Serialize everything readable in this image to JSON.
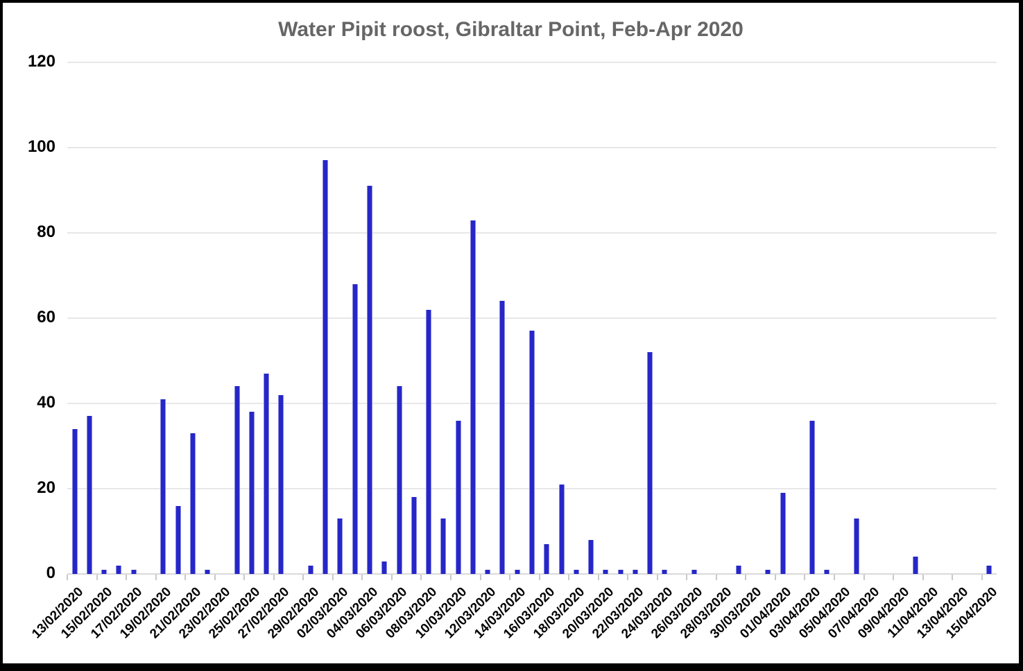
{
  "title": "Water Pipit roost, Gibraltar Point, Feb-Apr 2020",
  "colors": {
    "bar": "#2626c9",
    "bar_edge": "#8a8ae0",
    "title_text": "#666666",
    "axis_text": "#000000",
    "gridline": "#e7e7e7",
    "axis_line": "#d9d9d9",
    "frame": "#000000",
    "background": "#ffffff"
  },
  "chart_data": {
    "type": "bar",
    "title": "Water Pipit roost, Gibraltar Point, Feb-Apr 2020",
    "xlabel": "",
    "ylabel": "",
    "ylim": [
      0,
      120
    ],
    "yticks": [
      0,
      20,
      40,
      60,
      80,
      100,
      120
    ],
    "grid": true,
    "legend": false,
    "x_label_interval": 2,
    "x_labels_rotation_deg": 45,
    "categories": [
      "13/02/2020",
      "14/02/2020",
      "15/02/2020",
      "16/02/2020",
      "17/02/2020",
      "18/02/2020",
      "19/02/2020",
      "20/02/2020",
      "21/02/2020",
      "22/02/2020",
      "23/02/2020",
      "24/02/2020",
      "25/02/2020",
      "26/02/2020",
      "27/02/2020",
      "28/02/2020",
      "29/02/2020",
      "01/03/2020",
      "02/03/2020",
      "03/03/2020",
      "04/03/2020",
      "05/03/2020",
      "06/03/2020",
      "07/03/2020",
      "08/03/2020",
      "09/03/2020",
      "10/03/2020",
      "11/03/2020",
      "12/03/2020",
      "13/03/2020",
      "14/03/2020",
      "15/03/2020",
      "16/03/2020",
      "17/03/2020",
      "18/03/2020",
      "19/03/2020",
      "20/03/2020",
      "21/03/2020",
      "22/03/2020",
      "23/03/2020",
      "24/03/2020",
      "25/03/2020",
      "26/03/2020",
      "27/03/2020",
      "28/03/2020",
      "29/03/2020",
      "30/03/2020",
      "31/03/2020",
      "01/04/2020",
      "02/04/2020",
      "03/04/2020",
      "04/04/2020",
      "05/04/2020",
      "06/04/2020",
      "07/04/2020",
      "08/04/2020",
      "09/04/2020",
      "10/04/2020",
      "11/04/2020",
      "12/04/2020",
      "13/04/2020",
      "14/04/2020",
      "15/04/2020"
    ],
    "values": [
      34,
      37,
      1,
      2,
      1,
      0,
      41,
      16,
      33,
      1,
      0,
      44,
      38,
      47,
      42,
      0,
      2,
      97,
      13,
      68,
      91,
      3,
      44,
      18,
      62,
      13,
      36,
      83,
      1,
      64,
      1,
      57,
      7,
      21,
      1,
      8,
      1,
      1,
      1,
      52,
      1,
      0,
      1,
      0,
      0,
      2,
      0,
      1,
      19,
      0,
      36,
      1,
      0,
      13,
      0,
      0,
      0,
      4,
      0,
      0,
      0,
      0,
      2
    ]
  }
}
